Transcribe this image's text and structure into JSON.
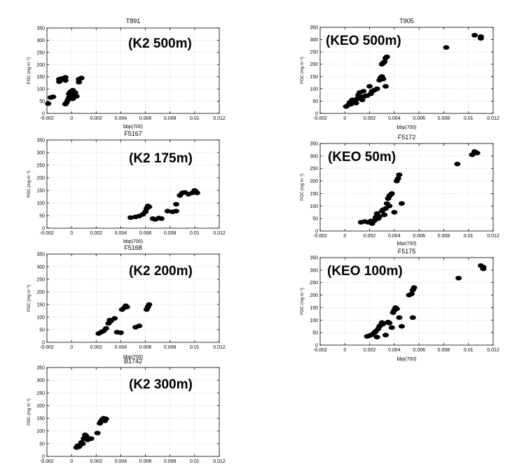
{
  "chart_data": [
    {
      "type": "scatter",
      "title": "T891",
      "annotation": "(K2 500m)",
      "xlabel": "bbp(700)",
      "ylabel": "POC (mg m⁻³)",
      "xlim": [
        -0.002,
        0.012
      ],
      "ylim": [
        0,
        350
      ],
      "xticks": [
        "-0.002",
        "0",
        "0.002",
        "0.004",
        "0.006",
        "0.008",
        "0.01",
        "0.012"
      ],
      "yticks": [
        "0",
        "50",
        "100",
        "150",
        "200",
        "250",
        "300",
        "350"
      ],
      "points": [
        [
          -0.0019,
          40
        ],
        [
          -0.0017,
          65
        ],
        [
          -0.0015,
          68
        ],
        [
          -0.001,
          140
        ],
        [
          -0.0008,
          143
        ],
        [
          -0.001,
          130
        ],
        [
          -0.0005,
          148
        ],
        [
          -0.0005,
          135
        ],
        [
          -0.0005,
          38
        ],
        [
          -0.0004,
          45
        ],
        [
          -0.0003,
          55
        ],
        [
          -0.0002,
          80
        ],
        [
          -0.0002,
          65
        ],
        [
          -0.0001,
          88
        ],
        [
          0.0001,
          95
        ],
        [
          0.0002,
          75
        ],
        [
          0.0003,
          85
        ],
        [
          0.0004,
          70
        ],
        [
          0.0006,
          140
        ],
        [
          0.0006,
          128
        ],
        [
          0.0008,
          145
        ],
        [
          0.0001,
          60
        ],
        [
          -0.0001,
          72
        ]
      ]
    },
    {
      "type": "scatter",
      "title": "T905",
      "annotation": "(KEO 500m)",
      "xlabel": "bbp(700)",
      "ylabel": "POC (mg m⁻³)",
      "xlim": [
        -0.002,
        0.012
      ],
      "ylim": [
        0,
        350
      ],
      "xticks": [
        "-0.002",
        "0",
        "0.002",
        "0.004",
        "0.006",
        "0.008",
        "0.01",
        "0.012"
      ],
      "yticks": [
        "0",
        "50",
        "100",
        "150",
        "200",
        "250",
        "300",
        "350"
      ],
      "points": [
        [
          0.0001,
          28
        ],
        [
          0.0003,
          35
        ],
        [
          0.0004,
          45
        ],
        [
          0.0005,
          38
        ],
        [
          0.0006,
          55
        ],
        [
          0.0008,
          50
        ],
        [
          0.0009,
          42
        ],
        [
          0.001,
          60
        ],
        [
          0.0011,
          75
        ],
        [
          0.0012,
          85
        ],
        [
          0.0013,
          65
        ],
        [
          0.0014,
          55
        ],
        [
          0.0015,
          90
        ],
        [
          0.0016,
          70
        ],
        [
          0.0018,
          72
        ],
        [
          0.002,
          110
        ],
        [
          0.0021,
          80
        ],
        [
          0.0022,
          90
        ],
        [
          0.0024,
          95
        ],
        [
          0.0026,
          100
        ],
        [
          0.0028,
          135
        ],
        [
          0.0029,
          145
        ],
        [
          0.003,
          150
        ],
        [
          0.0031,
          140
        ],
        [
          0.003,
          200
        ],
        [
          0.0031,
          205
        ],
        [
          0.0032,
          210
        ],
        [
          0.0033,
          225
        ],
        [
          0.0034,
          230
        ],
        [
          0.0033,
          110
        ],
        [
          0.0082,
          268
        ],
        [
          0.0105,
          318
        ],
        [
          0.011,
          312
        ],
        [
          0.011,
          305
        ]
      ]
    },
    {
      "type": "scatter",
      "title": "F5167",
      "annotation": "(K2 175m)",
      "xlabel": "bbp(700)",
      "ylabel": "POC (mg m⁻³)",
      "xlim": [
        -0.002,
        0.012
      ],
      "ylim": [
        0,
        350
      ],
      "xticks": [
        "-0.002",
        "0",
        "0.002",
        "0.004",
        "0.006",
        "0.008",
        "0.01",
        "0.012"
      ],
      "yticks": [
        "0",
        "50",
        "100",
        "150",
        "200",
        "250",
        "300",
        "350"
      ],
      "points": [
        [
          0.0048,
          42
        ],
        [
          0.0052,
          45
        ],
        [
          0.0055,
          48
        ],
        [
          0.0058,
          55
        ],
        [
          0.006,
          65
        ],
        [
          0.0061,
          78
        ],
        [
          0.0062,
          88
        ],
        [
          0.0063,
          85
        ],
        [
          0.0066,
          38
        ],
        [
          0.0068,
          35
        ],
        [
          0.0071,
          40
        ],
        [
          0.0073,
          38
        ],
        [
          0.0078,
          68
        ],
        [
          0.0082,
          65
        ],
        [
          0.0085,
          68
        ],
        [
          0.0085,
          95
        ],
        [
          0.0088,
          130
        ],
        [
          0.009,
          140
        ],
        [
          0.0092,
          142
        ],
        [
          0.0095,
          135
        ],
        [
          0.0098,
          140
        ],
        [
          0.01,
          150
        ],
        [
          0.0101,
          145
        ],
        [
          0.0102,
          140
        ]
      ]
    },
    {
      "type": "scatter",
      "title": "F5172",
      "annotation": "(KEO 50m)",
      "xlabel": "bbp(700)",
      "ylabel": "POC (mg m⁻³)",
      "xlim": [
        -0.002,
        0.012
      ],
      "ylim": [
        0,
        350
      ],
      "xticks": [
        "-0.002",
        "0",
        "0.002",
        "0.004",
        "0.006",
        "0.008",
        "0.01",
        "0.012"
      ],
      "yticks": [
        "0",
        "50",
        "100",
        "150",
        "200",
        "250",
        "300",
        "350"
      ],
      "points": [
        [
          0.0013,
          35
        ],
        [
          0.0016,
          38
        ],
        [
          0.0019,
          35
        ],
        [
          0.0021,
          40
        ],
        [
          0.0022,
          30
        ],
        [
          0.0024,
          42
        ],
        [
          0.0025,
          55
        ],
        [
          0.0026,
          70
        ],
        [
          0.0027,
          50
        ],
        [
          0.0028,
          58
        ],
        [
          0.003,
          80
        ],
        [
          0.0031,
          85
        ],
        [
          0.0032,
          65
        ],
        [
          0.0033,
          90
        ],
        [
          0.0034,
          110
        ],
        [
          0.0035,
          130
        ],
        [
          0.0036,
          140
        ],
        [
          0.0037,
          145
        ],
        [
          0.0038,
          150
        ],
        [
          0.0036,
          100
        ],
        [
          0.004,
          75
        ],
        [
          0.0042,
          200
        ],
        [
          0.0043,
          210
        ],
        [
          0.0044,
          225
        ],
        [
          0.0046,
          110
        ],
        [
          0.0091,
          268
        ],
        [
          0.0105,
          318
        ],
        [
          0.0107,
          312
        ],
        [
          0.0103,
          305
        ]
      ]
    },
    {
      "type": "scatter",
      "title": "F5168",
      "annotation": "(K2 200m)",
      "xlabel": "bbp(700)",
      "ylabel": "POC (mg m⁻³)",
      "xlim": [
        -0.002,
        0.012
      ],
      "ylim": [
        0,
        350
      ],
      "xticks": [
        "-0.002",
        "0",
        "0.002",
        "0.004",
        "0.006",
        "0.008",
        "0.01",
        "0.012"
      ],
      "yticks": [
        "0",
        "50",
        "100",
        "150",
        "200",
        "250",
        "300",
        "350"
      ],
      "points": [
        [
          0.0022,
          35
        ],
        [
          0.0024,
          40
        ],
        [
          0.0026,
          45
        ],
        [
          0.0028,
          55
        ],
        [
          0.003,
          75
        ],
        [
          0.0031,
          88
        ],
        [
          0.0032,
          85
        ],
        [
          0.0035,
          95
        ],
        [
          0.0037,
          40
        ],
        [
          0.004,
          38
        ],
        [
          0.0041,
          130
        ],
        [
          0.0043,
          138
        ],
        [
          0.0044,
          145
        ],
        [
          0.0045,
          140
        ],
        [
          0.0052,
          60
        ],
        [
          0.0055,
          65
        ],
        [
          0.0061,
          130
        ],
        [
          0.0062,
          140
        ],
        [
          0.0063,
          150
        ]
      ]
    },
    {
      "type": "scatter",
      "title": "F5175",
      "annotation": "(KEO 100m)",
      "xlabel": "bbp(700)",
      "ylabel": "POC (mg m⁻³)",
      "xlim": [
        -0.002,
        0.012
      ],
      "ylim": [
        0,
        350
      ],
      "xticks": [
        "-0.002",
        "0",
        "0.002",
        "0.004",
        "0.006",
        "0.008",
        "0.01",
        "0.012"
      ],
      "yticks": [
        "0",
        "50",
        "100",
        "150",
        "200",
        "250",
        "300",
        "350"
      ],
      "points": [
        [
          0.0018,
          35
        ],
        [
          0.002,
          38
        ],
        [
          0.0022,
          42
        ],
        [
          0.0024,
          50
        ],
        [
          0.0025,
          55
        ],
        [
          0.0026,
          32
        ],
        [
          0.0027,
          65
        ],
        [
          0.0028,
          75
        ],
        [
          0.0029,
          80
        ],
        [
          0.003,
          90
        ],
        [
          0.0031,
          85
        ],
        [
          0.0033,
          40
        ],
        [
          0.0035,
          92
        ],
        [
          0.0036,
          88
        ],
        [
          0.0038,
          70
        ],
        [
          0.0039,
          130
        ],
        [
          0.004,
          140
        ],
        [
          0.0041,
          150
        ],
        [
          0.0042,
          145
        ],
        [
          0.0044,
          110
        ],
        [
          0.0046,
          75
        ],
        [
          0.0052,
          200
        ],
        [
          0.0054,
          205
        ],
        [
          0.0055,
          220
        ],
        [
          0.0056,
          230
        ],
        [
          0.0055,
          110
        ],
        [
          0.0092,
          268
        ],
        [
          0.011,
          318
        ],
        [
          0.0112,
          312
        ],
        [
          0.0112,
          305
        ]
      ]
    },
    {
      "type": "scatter",
      "title": "B1742",
      "annotation": "(K2 300m)",
      "xlabel": "",
      "ylabel": "POC (mg m⁻³)",
      "xlim": [
        -0.002,
        0.012
      ],
      "ylim": [
        0,
        350
      ],
      "xticks": [
        "-0.002",
        "0",
        "0.002",
        "0.004",
        "0.006",
        "0.008",
        "0.01",
        "0.012"
      ],
      "yticks": [
        "0",
        "50",
        "100",
        "150",
        "200",
        "250",
        "300",
        "350"
      ],
      "points": [
        [
          0.0004,
          35
        ],
        [
          0.0005,
          42
        ],
        [
          0.0006,
          38
        ],
        [
          0.0007,
          45
        ],
        [
          0.0008,
          55
        ],
        [
          0.0009,
          50
        ],
        [
          0.001,
          70
        ],
        [
          0.0011,
          85
        ],
        [
          0.0012,
          80
        ],
        [
          0.0013,
          65
        ],
        [
          0.0014,
          68
        ],
        [
          0.0016,
          70
        ],
        [
          0.0021,
          92
        ],
        [
          0.0023,
          130
        ],
        [
          0.0024,
          138
        ],
        [
          0.0025,
          145
        ],
        [
          0.0026,
          150
        ],
        [
          0.0027,
          140
        ],
        [
          0.0028,
          148
        ]
      ]
    }
  ]
}
